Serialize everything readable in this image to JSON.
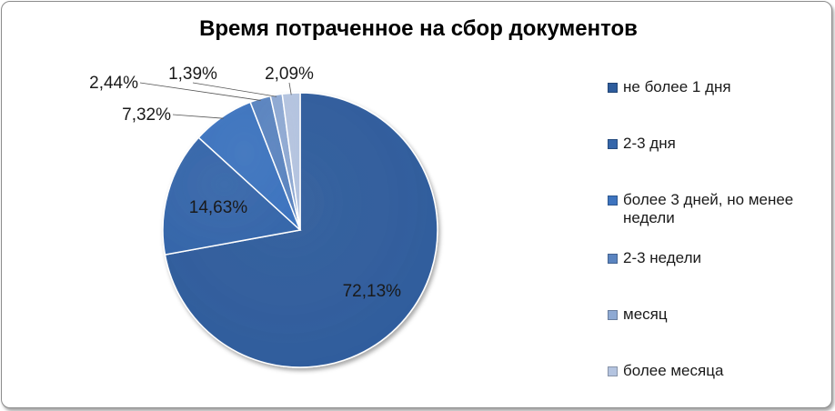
{
  "chart_data": {
    "type": "pie",
    "title": "Время потраченное на сбор документов",
    "categories": [
      "не более 1 дня",
      "2-3 дня",
      "более 3 дней, но менее недели",
      "2-3 недели",
      "месяц",
      "более месяца"
    ],
    "values": [
      72.13,
      14.63,
      7.32,
      2.44,
      1.39,
      2.09
    ],
    "labels": [
      "72,13%",
      "14,63%",
      "7,32%",
      "2,44%",
      "1,39%",
      "2,09%"
    ],
    "colors": [
      "#2e5c9c",
      "#3566aa",
      "#3d74bf",
      "#5a84c0",
      "#8ea9d3",
      "#b4c4e0"
    ],
    "legend_position": "right"
  }
}
